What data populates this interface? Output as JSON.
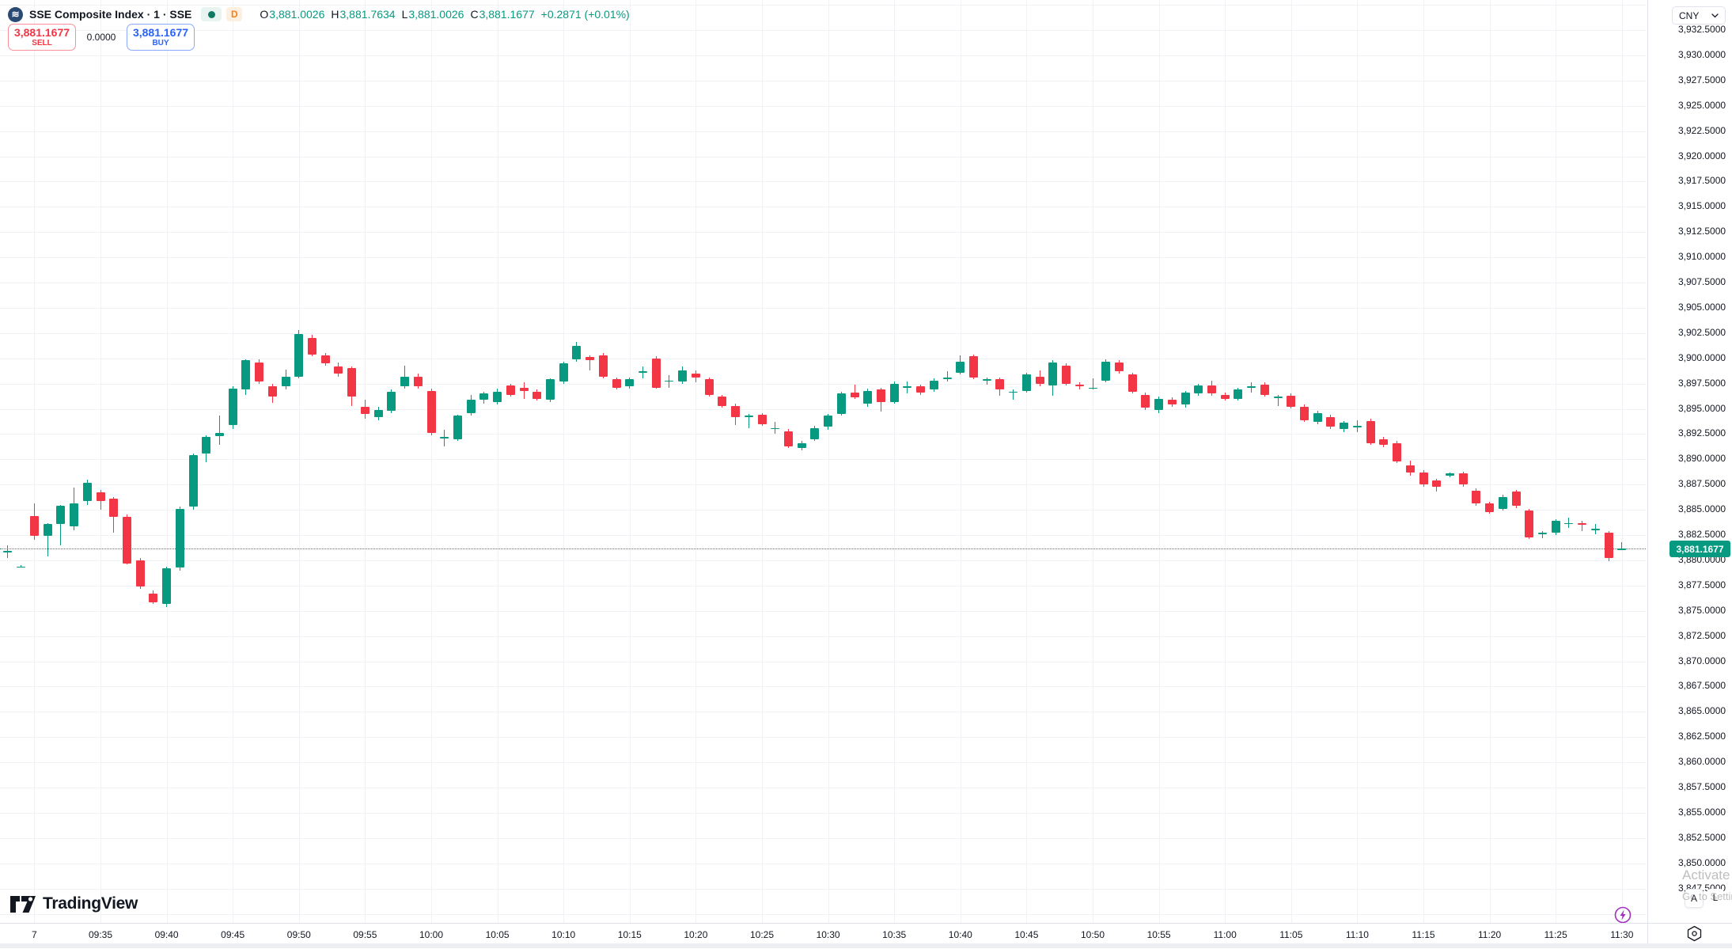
{
  "header": {
    "symbol_title": "SSE Composite Index · 1 · SSE",
    "data_mode_badge": "D",
    "ohlc": {
      "o_label": "O",
      "o_value": "3,881.0026",
      "h_label": "H",
      "h_value": "3,881.7634",
      "l_label": "L",
      "l_value": "3,881.0026",
      "c_label": "C",
      "c_value": "3,881.1677",
      "change": "+0.2871 (+0.01%)"
    }
  },
  "trade_panel": {
    "sell_price": "3,881.1677",
    "sell_label": "SELL",
    "spread": "0.0000",
    "buy_price": "3,881.1677",
    "buy_label": "BUY"
  },
  "price_axis": {
    "currency": "CNY",
    "last_price": "3,881.1677",
    "labels": [
      "3,932.5000",
      "3,930.0000",
      "3,927.5000",
      "3,925.0000",
      "3,922.5000",
      "3,920.0000",
      "3,917.5000",
      "3,915.0000",
      "3,912.5000",
      "3,910.0000",
      "3,907.5000",
      "3,905.0000",
      "3,902.5000",
      "3,900.0000",
      "3,897.5000",
      "3,895.0000",
      "3,892.5000",
      "3,890.0000",
      "3,887.5000",
      "3,885.0000",
      "3,882.5000",
      "3,880.0000",
      "3,877.5000",
      "3,875.0000",
      "3,872.5000",
      "3,870.0000",
      "3,867.5000",
      "3,865.0000",
      "3,862.5000",
      "3,860.0000",
      "3,857.5000",
      "3,855.0000",
      "3,852.5000",
      "3,850.0000",
      "3,847.5000"
    ]
  },
  "time_axis": {
    "labels": [
      "7",
      "09:35",
      "09:40",
      "09:45",
      "09:50",
      "09:55",
      "10:00",
      "10:05",
      "10:10",
      "10:15",
      "10:20",
      "10:25",
      "10:30",
      "10:35",
      "10:40",
      "10:45",
      "10:50",
      "10:55",
      "11:00",
      "11:05",
      "11:10",
      "11:15",
      "11:20",
      "11:25",
      "11:30"
    ]
  },
  "logo": {
    "text": "TradingView"
  },
  "scale_buttons": {
    "auto": "A",
    "log": "L"
  },
  "watermark": {
    "line1": "Activate Windows",
    "line2": "Go to Settings to activate Windows."
  },
  "colors": {
    "up": "#089981",
    "down": "#f23645",
    "sell": "#f23645",
    "buy": "#2962ff",
    "last_price_bg": "#089981",
    "d_badge": "#f57f17",
    "status_dot": "#0f7a62",
    "lightning": "#a22fbf",
    "grid": "#f0f2f6"
  },
  "chart_data": {
    "type": "candlestick",
    "title": "SSE Composite Index",
    "interval": "1",
    "exchange": "SSE",
    "currency": "CNY",
    "last_price": 3881.1677,
    "y_axis": {
      "max": 3932.5,
      "min": 3847.5,
      "step": 2.5
    },
    "x_axis": {
      "first_label": "7",
      "session_start": "09:30",
      "session_end": "11:30",
      "tick_minutes": 5
    },
    "first_session_index": 2,
    "candles": [
      [
        "09:28",
        3880.8,
        3881.5,
        3880.2,
        3880.9
      ],
      [
        "09:29",
        3879.4,
        3879.5,
        3879.3,
        3879.4
      ],
      [
        "09:30",
        3884.4,
        3885.6,
        3882.0,
        3882.4
      ],
      [
        "09:31",
        3882.4,
        3883.7,
        3880.4,
        3883.6
      ],
      [
        "09:32",
        3883.6,
        3885.5,
        3881.5,
        3885.4
      ],
      [
        "09:33",
        3883.4,
        3887.2,
        3883.0,
        3885.6
      ],
      [
        "09:34",
        3885.9,
        3888.0,
        3885.5,
        3887.7
      ],
      [
        "09:35",
        3886.7,
        3887.0,
        3885.0,
        3885.9
      ],
      [
        "09:36",
        3886.1,
        3886.3,
        3882.7,
        3884.3
      ],
      [
        "09:37",
        3884.3,
        3884.5,
        3879.6,
        3879.7
      ],
      [
        "09:38",
        3880.0,
        3880.2,
        3877.2,
        3877.4
      ],
      [
        "09:39",
        3876.7,
        3877.0,
        3875.7,
        3875.8
      ],
      [
        "09:40",
        3875.7,
        3879.4,
        3875.4,
        3879.2
      ],
      [
        "09:41",
        3879.3,
        3885.3,
        3879.0,
        3885.1
      ],
      [
        "09:42",
        3885.3,
        3890.6,
        3885.0,
        3890.4
      ],
      [
        "09:43",
        3890.6,
        3892.4,
        3889.7,
        3892.2
      ],
      [
        "09:44",
        3892.3,
        3894.3,
        3891.4,
        3892.6
      ],
      [
        "09:45",
        3893.4,
        3897.2,
        3893.0,
        3897.0
      ],
      [
        "09:46",
        3896.9,
        3899.9,
        3896.4,
        3899.8
      ],
      [
        "09:47",
        3899.6,
        3899.9,
        3897.5,
        3897.7
      ],
      [
        "09:48",
        3897.2,
        3897.5,
        3895.6,
        3896.2
      ],
      [
        "09:49",
        3897.2,
        3898.9,
        3896.9,
        3898.2
      ],
      [
        "09:50",
        3898.2,
        3902.8,
        3898.0,
        3902.4
      ],
      [
        "09:51",
        3902.0,
        3902.3,
        3900.2,
        3900.4
      ],
      [
        "09:52",
        3900.3,
        3900.5,
        3899.3,
        3899.5
      ],
      [
        "09:53",
        3899.2,
        3899.6,
        3898.2,
        3898.5
      ],
      [
        "09:54",
        3899.0,
        3899.2,
        3895.3,
        3896.2
      ],
      [
        "09:55",
        3895.2,
        3895.9,
        3894.0,
        3894.5
      ],
      [
        "09:56",
        3894.2,
        3895.2,
        3893.9,
        3894.9
      ],
      [
        "09:57",
        3894.8,
        3896.9,
        3894.6,
        3896.7
      ],
      [
        "09:58",
        3897.2,
        3899.3,
        3897.0,
        3898.2
      ],
      [
        "09:59",
        3898.2,
        3898.5,
        3897.0,
        3897.2
      ],
      [
        "10:00",
        3896.8,
        3897.0,
        3892.4,
        3892.6
      ],
      [
        "10:01",
        3892.1,
        3892.9,
        3891.3,
        3892.2
      ],
      [
        "10:02",
        3892.0,
        3894.4,
        3891.8,
        3894.3
      ],
      [
        "10:03",
        3894.6,
        3896.4,
        3894.3,
        3895.9
      ],
      [
        "10:04",
        3895.9,
        3896.7,
        3895.5,
        3896.5
      ],
      [
        "10:05",
        3895.7,
        3897.0,
        3895.4,
        3896.7
      ],
      [
        "10:06",
        3897.3,
        3897.5,
        3896.2,
        3896.4
      ],
      [
        "10:07",
        3897.1,
        3897.6,
        3896.0,
        3896.8
      ],
      [
        "10:08",
        3896.7,
        3896.9,
        3895.8,
        3896.0
      ],
      [
        "10:09",
        3895.9,
        3898.0,
        3895.7,
        3897.9
      ],
      [
        "10:10",
        3897.7,
        3899.7,
        3897.5,
        3899.5
      ],
      [
        "10:11",
        3899.9,
        3901.6,
        3899.7,
        3901.2
      ],
      [
        "10:12",
        3900.1,
        3900.3,
        3898.8,
        3899.8
      ],
      [
        "10:13",
        3900.3,
        3900.5,
        3898.0,
        3898.2
      ],
      [
        "10:14",
        3897.9,
        3898.1,
        3896.9,
        3897.1
      ],
      [
        "10:15",
        3897.2,
        3898.1,
        3897.0,
        3897.9
      ],
      [
        "10:16",
        3898.6,
        3899.2,
        3898.0,
        3898.7
      ],
      [
        "10:17",
        3900.0,
        3900.2,
        3897.0,
        3897.1
      ],
      [
        "10:18",
        3897.7,
        3898.3,
        3897.1,
        3897.8
      ],
      [
        "10:19",
        3897.7,
        3899.2,
        3897.5,
        3898.8
      ],
      [
        "10:20",
        3898.5,
        3898.8,
        3897.6,
        3898.1
      ],
      [
        "10:21",
        3897.9,
        3898.1,
        3896.2,
        3896.4
      ],
      [
        "10:22",
        3896.2,
        3896.4,
        3895.1,
        3895.3
      ],
      [
        "10:23",
        3895.3,
        3895.5,
        3893.4,
        3894.2
      ],
      [
        "10:24",
        3894.3,
        3894.5,
        3893.1,
        3894.3
      ],
      [
        "10:25",
        3894.4,
        3894.6,
        3893.3,
        3893.5
      ],
      [
        "10:26",
        3893.1,
        3893.7,
        3892.5,
        3893.1
      ],
      [
        "10:27",
        3892.8,
        3893.0,
        3891.1,
        3891.3
      ],
      [
        "10:28",
        3891.1,
        3891.8,
        3890.9,
        3891.6
      ],
      [
        "10:29",
        3892.0,
        3893.3,
        3891.8,
        3893.1
      ],
      [
        "10:30",
        3893.2,
        3894.5,
        3892.9,
        3894.3
      ],
      [
        "10:31",
        3894.5,
        3896.7,
        3894.3,
        3896.5
      ],
      [
        "10:32",
        3896.6,
        3897.4,
        3896.0,
        3896.1
      ],
      [
        "10:33",
        3895.5,
        3897.0,
        3895.2,
        3896.8
      ],
      [
        "10:34",
        3896.9,
        3897.1,
        3894.7,
        3895.7
      ],
      [
        "10:35",
        3895.7,
        3897.7,
        3895.5,
        3897.5
      ],
      [
        "10:36",
        3897.1,
        3897.7,
        3896.5,
        3897.2
      ],
      [
        "10:37",
        3897.2,
        3897.4,
        3896.4,
        3896.6
      ],
      [
        "10:38",
        3896.9,
        3898.0,
        3896.7,
        3897.8
      ],
      [
        "10:39",
        3898.0,
        3898.7,
        3897.7,
        3898.1
      ],
      [
        "10:40",
        3898.6,
        3900.3,
        3898.4,
        3899.7
      ],
      [
        "10:41",
        3900.2,
        3900.4,
        3897.9,
        3898.1
      ],
      [
        "10:42",
        3897.9,
        3898.1,
        3897.4,
        3897.9
      ],
      [
        "10:43",
        3897.9,
        3898.1,
        3896.3,
        3896.9
      ],
      [
        "10:44",
        3896.7,
        3896.9,
        3895.9,
        3896.7
      ],
      [
        "10:45",
        3896.8,
        3898.6,
        3896.6,
        3898.4
      ],
      [
        "10:46",
        3898.2,
        3898.8,
        3897.2,
        3897.5
      ],
      [
        "10:47",
        3897.3,
        3899.8,
        3896.3,
        3899.6
      ],
      [
        "10:48",
        3899.3,
        3899.5,
        3897.3,
        3897.5
      ],
      [
        "10:49",
        3897.4,
        3897.6,
        3896.9,
        3897.2
      ],
      [
        "10:50",
        3897.1,
        3898.0,
        3896.9,
        3897.1
      ],
      [
        "10:51",
        3897.8,
        3899.9,
        3897.6,
        3899.7
      ],
      [
        "10:52",
        3899.6,
        3899.8,
        3898.5,
        3898.7
      ],
      [
        "10:53",
        3898.4,
        3898.6,
        3896.5,
        3896.7
      ],
      [
        "10:54",
        3896.4,
        3896.6,
        3894.9,
        3895.1
      ],
      [
        "10:55",
        3894.9,
        3896.2,
        3894.6,
        3896.0
      ],
      [
        "10:56",
        3895.9,
        3896.1,
        3895.2,
        3895.4
      ],
      [
        "10:57",
        3895.4,
        3896.8,
        3895.1,
        3896.6
      ],
      [
        "10:58",
        3896.5,
        3897.5,
        3896.3,
        3897.3
      ],
      [
        "10:59",
        3897.3,
        3897.8,
        3896.3,
        3896.5
      ],
      [
        "11:00",
        3896.4,
        3896.6,
        3895.8,
        3896.0
      ],
      [
        "11:01",
        3896.0,
        3897.1,
        3895.8,
        3896.9
      ],
      [
        "11:02",
        3897.1,
        3897.6,
        3896.6,
        3897.2
      ],
      [
        "11:03",
        3897.4,
        3897.6,
        3896.2,
        3896.4
      ],
      [
        "11:04",
        3896.2,
        3896.4,
        3895.3,
        3896.2
      ],
      [
        "11:05",
        3896.3,
        3896.5,
        3895.0,
        3895.2
      ],
      [
        "11:06",
        3895.2,
        3895.4,
        3893.7,
        3893.9
      ],
      [
        "11:07",
        3893.7,
        3894.8,
        3893.5,
        3894.6
      ],
      [
        "11:08",
        3894.2,
        3894.4,
        3893.0,
        3893.2
      ],
      [
        "11:09",
        3893.0,
        3893.8,
        3892.7,
        3893.6
      ],
      [
        "11:10",
        3893.3,
        3893.9,
        3892.7,
        3893.3
      ],
      [
        "11:11",
        3893.8,
        3894.0,
        3891.4,
        3891.6
      ],
      [
        "11:12",
        3892.0,
        3892.2,
        3891.2,
        3891.4
      ],
      [
        "11:13",
        3891.6,
        3891.8,
        3889.6,
        3889.8
      ],
      [
        "11:14",
        3889.4,
        3889.9,
        3888.4,
        3888.7
      ],
      [
        "11:15",
        3888.7,
        3888.9,
        3887.3,
        3887.5
      ],
      [
        "11:16",
        3887.9,
        3888.1,
        3886.8,
        3887.3
      ],
      [
        "11:17",
        3888.4,
        3888.7,
        3888.2,
        3888.6
      ],
      [
        "11:18",
        3888.6,
        3888.8,
        3887.3,
        3887.5
      ],
      [
        "11:19",
        3886.9,
        3887.1,
        3885.4,
        3885.6
      ],
      [
        "11:20",
        3885.6,
        3885.8,
        3884.6,
        3884.8
      ],
      [
        "11:21",
        3885.1,
        3886.5,
        3884.9,
        3886.3
      ],
      [
        "11:22",
        3886.8,
        3887.0,
        3885.2,
        3885.4
      ],
      [
        "11:23",
        3884.9,
        3885.1,
        3882.1,
        3882.3
      ],
      [
        "11:24",
        3882.6,
        3882.9,
        3882.2,
        3882.7
      ],
      [
        "11:25",
        3882.7,
        3884.1,
        3882.5,
        3883.9
      ],
      [
        "11:26",
        3883.7,
        3884.2,
        3883.2,
        3883.7
      ],
      [
        "11:27",
        3883.7,
        3883.9,
        3882.9,
        3883.5
      ],
      [
        "11:28",
        3883.1,
        3883.6,
        3882.6,
        3883.1
      ],
      [
        "11:29",
        3882.7,
        3882.9,
        3879.9,
        3880.2
      ],
      [
        "11:30",
        3881.0026,
        3881.7634,
        3881.0026,
        3881.1677
      ]
    ]
  }
}
